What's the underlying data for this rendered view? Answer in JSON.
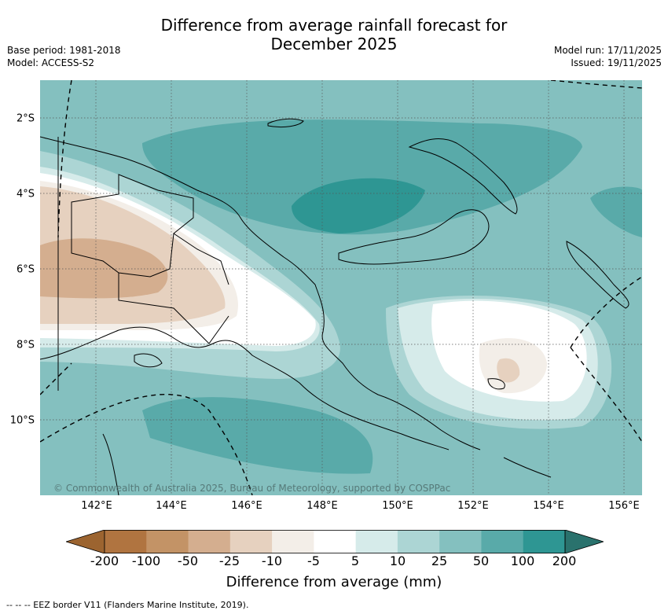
{
  "title_line1": "Difference from average rainfall forecast for",
  "title_line2": "December 2025",
  "base_period": "Base period: 1981-2018",
  "model": "Model: ACCESS-S2",
  "model_run": "Model run: 17/11/2025",
  "issued": "Issued: 19/11/2025",
  "copyright": "© Commonwealth of Australia 2025, Bureau of Meteorology, supported by COSPPac",
  "lat_labels": [
    "2°S",
    "4°S",
    "6°S",
    "8°S",
    "10°S"
  ],
  "lon_labels": [
    "142°E",
    "144°E",
    "146°E",
    "148°E",
    "150°E",
    "152°E",
    "154°E",
    "156°E"
  ],
  "legend": {
    "title": "Difference from average (mm)",
    "ticks": [
      "-200",
      "-100",
      "-50",
      "-25",
      "-10",
      "-5",
      "5",
      "10",
      "25",
      "50",
      "100",
      "200"
    ],
    "colors": [
      "#9c6430",
      "#b07440",
      "#c39366",
      "#d4ae8f",
      "#e6d1bf",
      "#f3eee8",
      "#ffffff",
      "#d6ebea",
      "#acd5d4",
      "#84c0bf",
      "#59aaa9",
      "#2e9693",
      "#2a726d"
    ]
  },
  "footnote": "-- -- -- EEZ border V11 (Flanders Marine Institute, 2019)."
}
